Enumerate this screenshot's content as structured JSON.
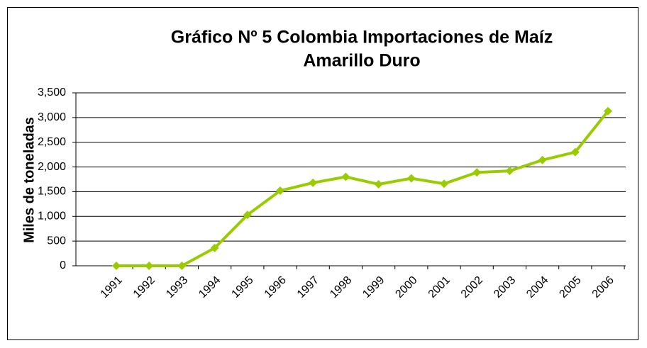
{
  "chart_data": {
    "type": "line",
    "title_lines": [
      "Gráfico Nº 5 Colombia Importaciones de Maíz",
      "Amarillo Duro"
    ],
    "y_label": "Miles de toneladas",
    "categories": [
      "1991",
      "1992",
      "1993",
      "1994",
      "1995",
      "1996",
      "1997",
      "1998",
      "1999",
      "2000",
      "2001",
      "2002",
      "2003",
      "2004",
      "2005",
      "2006"
    ],
    "series": [
      {
        "color": "#99cc00",
        "values": [
          0,
          0,
          0,
          360,
          1030,
          1520,
          1680,
          1800,
          1650,
          1770,
          1660,
          1890,
          1920,
          2140,
          2300,
          3130
        ]
      }
    ],
    "ylim": [
      0,
      3500
    ],
    "yticks": [
      0,
      500,
      {
        "value": 1000,
        "label": "1,000"
      },
      {
        "value": 1500,
        "label": "1,500"
      },
      {
        "value": 2000,
        "label": "2,000"
      },
      {
        "value": 2500,
        "label": "2,500"
      },
      {
        "value": 3000,
        "label": "3,000"
      },
      {
        "value": 3500,
        "label": "3,500"
      }
    ],
    "grid": true
  }
}
